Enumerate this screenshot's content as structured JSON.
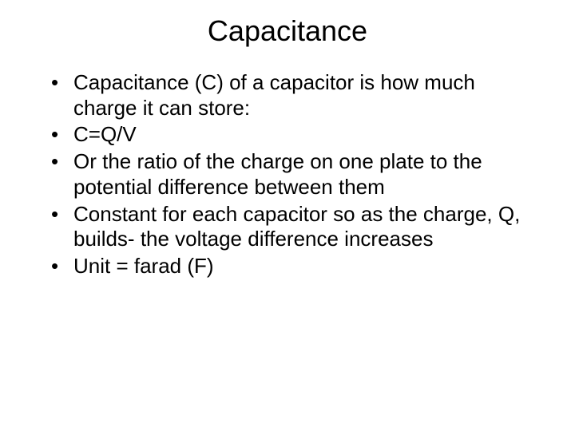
{
  "slide": {
    "title": "Capacitance",
    "bullets": [
      "Capacitance (C) of a capacitor is how much charge it can store:",
      "C=Q/V",
      "Or the ratio of the charge on one plate to the potential difference between them",
      "Constant for each capacitor so as the charge, Q, builds- the voltage difference increases",
      "Unit = farad (F)"
    ]
  },
  "styling": {
    "background_color": "#ffffff",
    "text_color": "#000000",
    "title_fontsize": 36,
    "body_fontsize": 26,
    "font_family": "Arial"
  }
}
